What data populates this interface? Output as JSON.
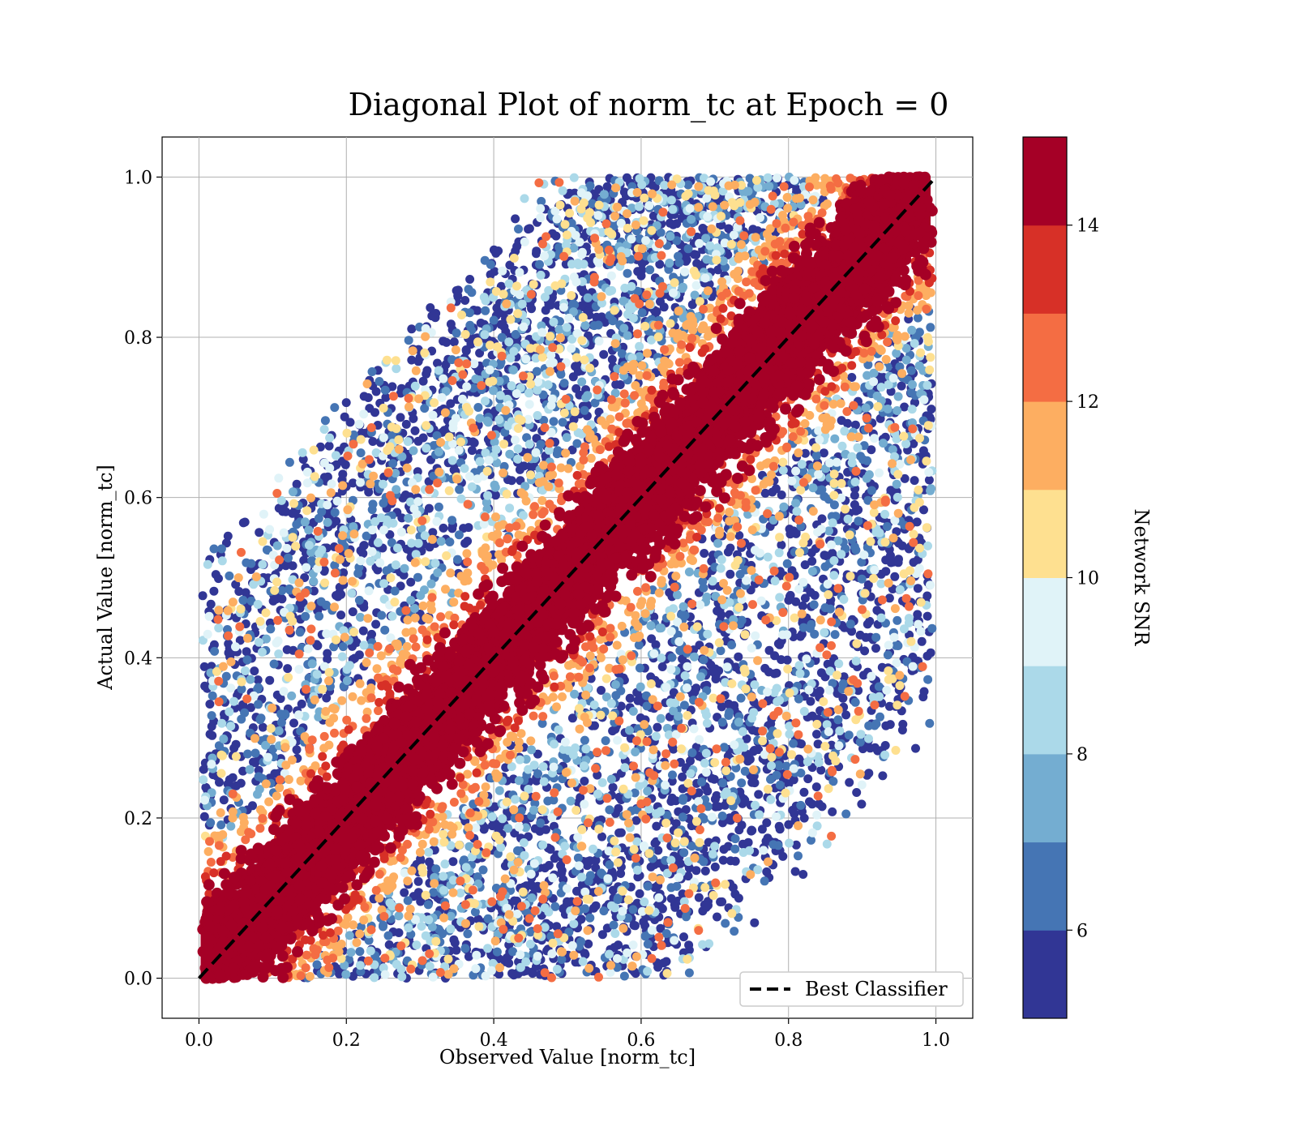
{
  "chart_data": {
    "type": "scatter",
    "title": "Diagonal Plot of norm_tc at Epoch = 0",
    "xlabel": "Observed Value [norm_tc]",
    "ylabel": "Actual Value [norm_tc]",
    "xlim": [
      -0.05,
      1.05
    ],
    "ylim": [
      -0.05,
      1.05
    ],
    "xticks": [
      "0.0",
      "0.2",
      "0.4",
      "0.6",
      "0.8",
      "1.0"
    ],
    "yticks": [
      "0.0",
      "0.2",
      "0.4",
      "0.6",
      "0.8",
      "1.0"
    ],
    "grid": true,
    "reference_line": {
      "name": "Best Classifier",
      "x": [
        0,
        1
      ],
      "y": [
        0,
        1
      ],
      "style": "dashed",
      "color": "#000000"
    },
    "legend": {
      "position": "lower-right",
      "entries": [
        "Best Classifier"
      ]
    },
    "colorbar": {
      "label": "Network SNR",
      "range": [
        5,
        15
      ],
      "ticks": [
        "6",
        "8",
        "10",
        "12",
        "14"
      ],
      "tick_values": [
        6,
        8,
        10,
        12,
        14
      ],
      "colormap": "RdYlBu_r",
      "colors": [
        "#313695",
        "#4575b4",
        "#74add1",
        "#abd9e9",
        "#e0f3f8",
        "#fee090",
        "#fdae61",
        "#f46d43",
        "#d73027",
        "#a50026"
      ]
    },
    "series": [
      {
        "points_description_note": "",
        "x": [],
        "y": []
      }
    ]
  }
}
